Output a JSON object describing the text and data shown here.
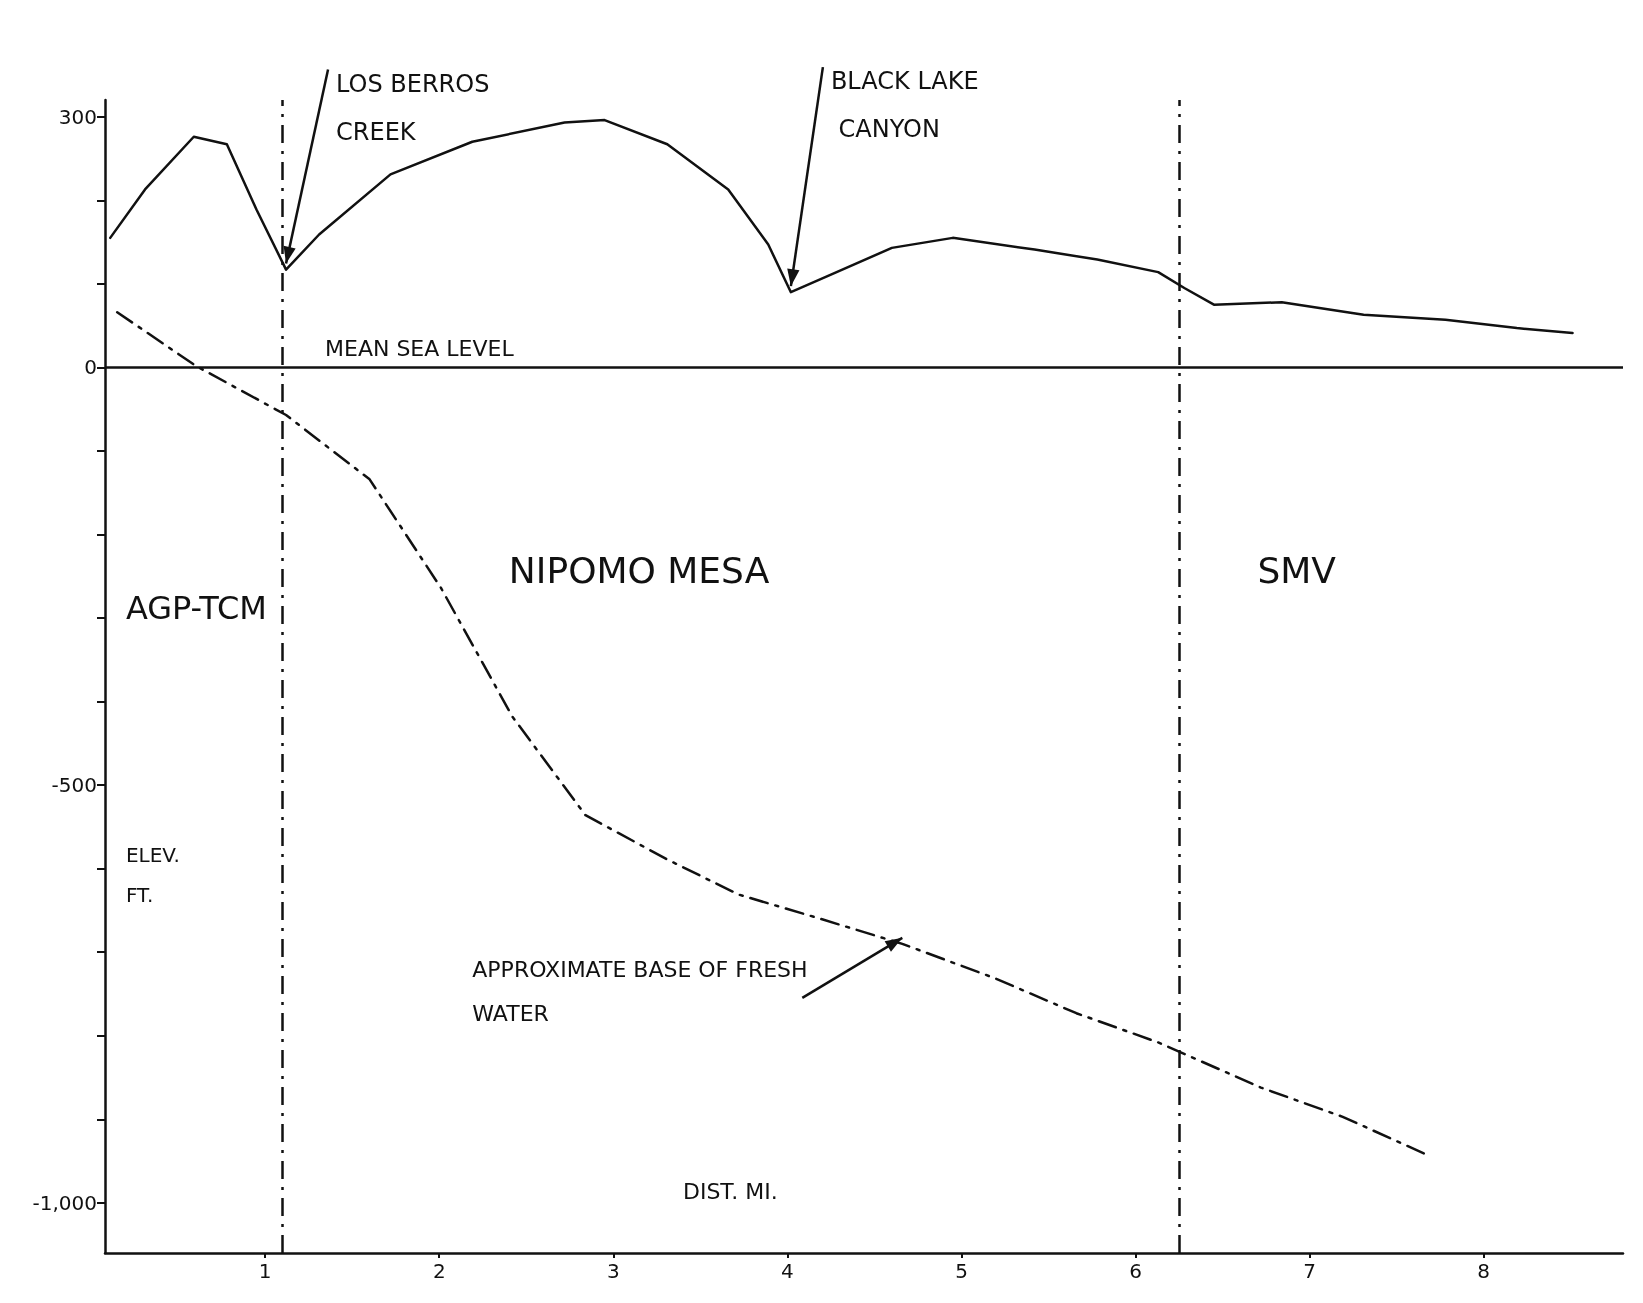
{
  "chart_data": {
    "type": "line",
    "xlabel": "DIST. MI.",
    "ylabel": "ELEV. FT.",
    "xlim": [
      0.08,
      8.8
    ],
    "xticks": [
      1,
      2,
      3,
      4,
      5,
      6,
      7,
      8
    ],
    "ylim": [
      -1060,
      320
    ],
    "yticks": [
      300,
      {
        "value": 200,
        "label": null
      },
      {
        "value": 100,
        "label": null
      },
      0,
      {
        "value": -100,
        "label": null
      },
      {
        "value": -200,
        "label": null
      },
      {
        "value": -300,
        "label": null
      },
      {
        "value": -400,
        "label": null
      },
      {
        "value": -500,
        "label": "-500"
      },
      {
        "value": -600,
        "label": null
      },
      {
        "value": -700,
        "label": null
      },
      {
        "value": -800,
        "label": null
      },
      {
        "value": -900,
        "label": null
      },
      {
        "value": -1000,
        "label": "-1,000"
      }
    ],
    "marker": "none",
    "series": [
      {
        "color": "#111111",
        "line_style": "solid",
        "x": [
          0.11,
          0.31,
          0.59,
          0.78,
          0.95,
          1.12,
          1.31,
          1.72,
          2.19,
          2.72,
          2.95,
          3.31,
          3.66,
          3.89,
          4.02,
          4.25,
          4.6,
          4.95,
          5.42,
          5.78,
          6.13,
          6.28,
          6.45,
          6.84,
          7.31,
          7.78,
          8.19,
          8.51
        ],
        "values": [
          155,
          213,
          276,
          267,
          189,
          117,
          159,
          231,
          270,
          293,
          296,
          267,
          213,
          147,
          90,
          111,
          143,
          155,
          141,
          129,
          114,
          95,
          75,
          78,
          63,
          57,
          47,
          41
        ]
      },
      {
        "color": "#111111",
        "line_style": "dashed",
        "x": [
          0.15,
          0.6,
          1.12,
          1.6,
          2.01,
          2.42,
          2.84,
          3.31,
          3.72,
          4.19,
          4.66,
          5.19,
          5.66,
          6.13,
          6.72,
          7.19,
          7.69
        ],
        "values": [
          66,
          2,
          -57,
          -134,
          -264,
          -418,
          -536,
          -589,
          -631,
          -660,
          -690,
          -731,
          -773,
          -808,
          -862,
          -897,
          -944
        ]
      }
    ],
    "ref_lines": [
      {
        "axis": "y",
        "value": 0,
        "label": "MEAN SEA LEVEL",
        "line_style": "solid",
        "color": "#111111"
      },
      {
        "axis": "x",
        "value": 1.1,
        "line_style": "dashed",
        "color": "#111111"
      },
      {
        "axis": "x",
        "value": 6.25,
        "line_style": "dashed",
        "color": "#111111"
      }
    ],
    "annotations": [
      {
        "text": "LOS BERROS CREEK",
        "x": 1.12,
        "y": 117
      },
      {
        "text": "BLACK LAKE CANYON",
        "x": 4.02,
        "y": 90
      },
      {
        "text": "APPROXIMATE BASE OF FRESH WATER",
        "x": 4.66,
        "y": -690
      },
      "AGP-TCM",
      "NIPOMO MESA",
      "SMV"
    ]
  }
}
